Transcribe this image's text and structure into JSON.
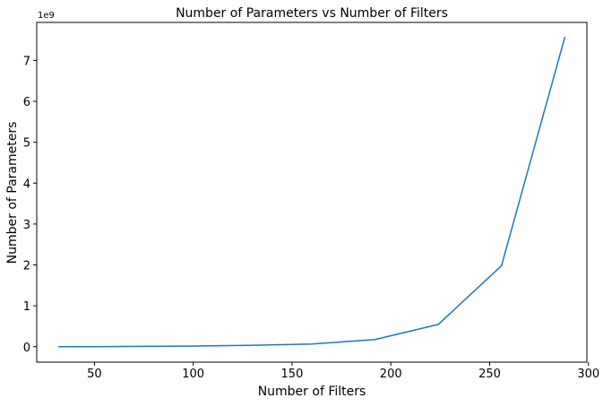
{
  "chart_data": {
    "type": "line",
    "title": "Number of Parameters vs Number of Filters",
    "xlabel": "Number of Filters",
    "ylabel": "Number of Parameters",
    "y_scale_label": "1e9",
    "x_ticks": [
      50,
      100,
      150,
      200,
      250,
      300
    ],
    "y_ticks": [
      0,
      1,
      2,
      3,
      4,
      5,
      6,
      7
    ],
    "xlim": [
      20.8,
      299.2
    ],
    "ylim": [
      -0.378,
      7.93
    ],
    "grid": false,
    "legend": "none",
    "colors": {
      "line": "#1f77b4"
    },
    "series": [
      {
        "x": [
          32,
          64,
          96,
          128,
          160,
          192,
          224,
          256,
          288
        ],
        "y": [
          0.0005,
          0.0042,
          0.0141,
          0.0336,
          0.0656,
          0.175,
          0.545,
          1.98,
          7.56
        ]
      }
    ]
  }
}
